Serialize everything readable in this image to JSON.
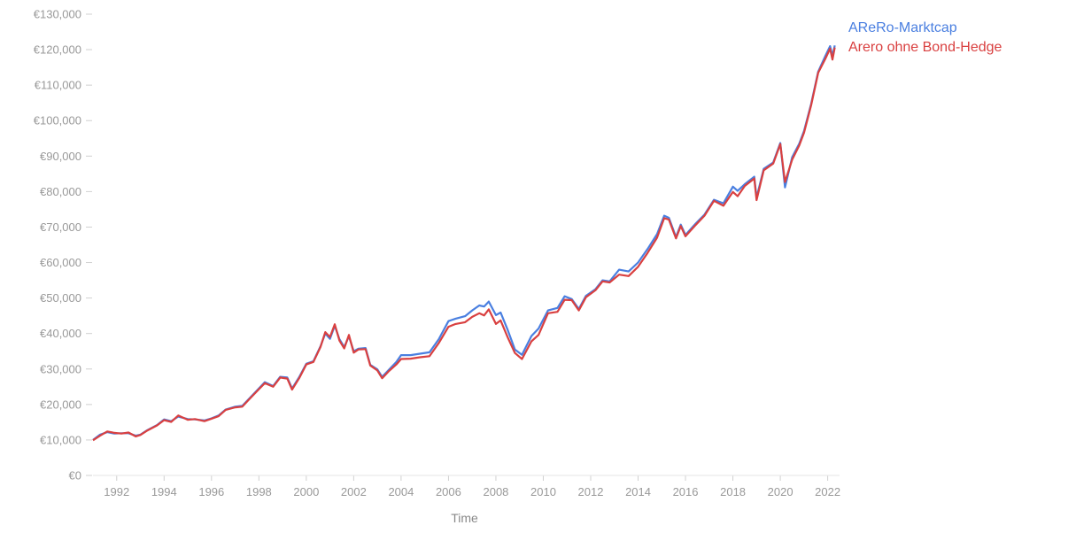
{
  "chart_data": {
    "type": "line",
    "xlabel": "Time",
    "ylabel": "",
    "xlim": [
      1991.0,
      2022.5
    ],
    "ylim": [
      0,
      130000
    ],
    "grid": false,
    "legend_placement": "right, next to line ends",
    "y_ticks": [
      0,
      10000,
      20000,
      30000,
      40000,
      50000,
      60000,
      70000,
      80000,
      90000,
      100000,
      110000,
      120000,
      130000
    ],
    "y_tick_labels": [
      "€0",
      "€10,000",
      "€20,000",
      "€30,000",
      "€40,000",
      "€50,000",
      "€60,000",
      "€70,000",
      "€80,000",
      "€90,000",
      "€100,000",
      "€110,000",
      "€120,000",
      "€130,000"
    ],
    "x_ticks": [
      1992,
      1994,
      1996,
      1998,
      2000,
      2002,
      2004,
      2006,
      2008,
      2010,
      2012,
      2014,
      2016,
      2018,
      2020,
      2022
    ],
    "x_tick_labels": [
      "1992",
      "1994",
      "1996",
      "1998",
      "2000",
      "2002",
      "2004",
      "2006",
      "2008",
      "2010",
      "2012",
      "2014",
      "2016",
      "2018",
      "2020",
      "2022"
    ],
    "series": [
      {
        "name": "AReRo-Marktcap",
        "color": "#4a7fe0",
        "points": [
          [
            1991.0,
            10000
          ],
          [
            1991.3,
            11500
          ],
          [
            1991.6,
            12200
          ],
          [
            1991.9,
            11800
          ],
          [
            1992.2,
            11900
          ],
          [
            1992.5,
            11900
          ],
          [
            1992.8,
            11200
          ],
          [
            1993.0,
            11500
          ],
          [
            1993.3,
            12800
          ],
          [
            1993.7,
            14200
          ],
          [
            1994.0,
            15800
          ],
          [
            1994.3,
            15300
          ],
          [
            1994.6,
            16600
          ],
          [
            1995.0,
            15900
          ],
          [
            1995.3,
            15800
          ],
          [
            1995.7,
            15500
          ],
          [
            1996.0,
            16100
          ],
          [
            1996.3,
            16900
          ],
          [
            1996.6,
            18600
          ],
          [
            1997.0,
            19400
          ],
          [
            1997.3,
            19600
          ],
          [
            1997.6,
            21700
          ],
          [
            1998.0,
            24500
          ],
          [
            1998.25,
            26300
          ],
          [
            1998.6,
            25200
          ],
          [
            1998.9,
            27800
          ],
          [
            1999.2,
            27600
          ],
          [
            1999.4,
            24500
          ],
          [
            1999.7,
            27700
          ],
          [
            2000.0,
            31500
          ],
          [
            2000.3,
            32200
          ],
          [
            2000.6,
            36400
          ],
          [
            2000.8,
            40000
          ],
          [
            2001.0,
            38500
          ],
          [
            2001.2,
            42200
          ],
          [
            2001.4,
            38400
          ],
          [
            2001.6,
            36200
          ],
          [
            2001.8,
            39200
          ],
          [
            2002.0,
            35000
          ],
          [
            2002.2,
            35700
          ],
          [
            2002.5,
            35900
          ],
          [
            2002.7,
            31200
          ],
          [
            2003.0,
            29900
          ],
          [
            2003.2,
            27800
          ],
          [
            2003.5,
            29900
          ],
          [
            2003.8,
            32000
          ],
          [
            2004.0,
            33900
          ],
          [
            2004.4,
            33900
          ],
          [
            2004.8,
            34300
          ],
          [
            2005.2,
            34700
          ],
          [
            2005.6,
            38500
          ],
          [
            2006.0,
            43500
          ],
          [
            2006.3,
            44200
          ],
          [
            2006.7,
            44900
          ],
          [
            2007.0,
            46500
          ],
          [
            2007.3,
            47900
          ],
          [
            2007.5,
            47600
          ],
          [
            2007.7,
            49000
          ],
          [
            2008.0,
            45200
          ],
          [
            2008.2,
            45900
          ],
          [
            2008.5,
            41000
          ],
          [
            2008.8,
            35500
          ],
          [
            2009.1,
            34000
          ],
          [
            2009.5,
            39300
          ],
          [
            2009.8,
            41400
          ],
          [
            2010.2,
            46500
          ],
          [
            2010.6,
            47200
          ],
          [
            2010.9,
            50500
          ],
          [
            2011.2,
            49700
          ],
          [
            2011.5,
            46900
          ],
          [
            2011.8,
            50600
          ],
          [
            2012.2,
            52500
          ],
          [
            2012.5,
            55000
          ],
          [
            2012.8,
            54700
          ],
          [
            2013.2,
            58000
          ],
          [
            2013.6,
            57500
          ],
          [
            2014.0,
            60000
          ],
          [
            2014.4,
            63800
          ],
          [
            2014.8,
            68000
          ],
          [
            2015.1,
            73200
          ],
          [
            2015.3,
            72600
          ],
          [
            2015.6,
            67200
          ],
          [
            2015.8,
            70700
          ],
          [
            2016.0,
            67800
          ],
          [
            2016.4,
            70800
          ],
          [
            2016.8,
            73500
          ],
          [
            2017.2,
            77700
          ],
          [
            2017.6,
            76700
          ],
          [
            2018.0,
            81400
          ],
          [
            2018.2,
            80200
          ],
          [
            2018.5,
            82100
          ],
          [
            2018.9,
            84200
          ],
          [
            2019.0,
            78300
          ],
          [
            2019.3,
            86400
          ],
          [
            2019.7,
            88200
          ],
          [
            2020.0,
            93700
          ],
          [
            2020.2,
            81200
          ],
          [
            2020.5,
            89700
          ],
          [
            2020.8,
            93500
          ],
          [
            2021.0,
            97100
          ],
          [
            2021.3,
            104700
          ],
          [
            2021.6,
            113800
          ],
          [
            2021.9,
            118200
          ],
          [
            2022.1,
            121000
          ],
          [
            2022.2,
            118200
          ],
          [
            2022.3,
            121200
          ]
        ]
      },
      {
        "name": "Arero ohne Bond-Hedge",
        "color": "#d94040",
        "points": [
          [
            1991.0,
            9900
          ],
          [
            1991.3,
            11200
          ],
          [
            1991.6,
            12400
          ],
          [
            1991.9,
            12000
          ],
          [
            1992.2,
            11800
          ],
          [
            1992.5,
            12100
          ],
          [
            1992.8,
            11000
          ],
          [
            1993.0,
            11400
          ],
          [
            1993.3,
            12700
          ],
          [
            1993.7,
            14100
          ],
          [
            1994.0,
            15600
          ],
          [
            1994.3,
            15100
          ],
          [
            1994.6,
            16900
          ],
          [
            1995.0,
            15700
          ],
          [
            1995.3,
            15900
          ],
          [
            1995.7,
            15300
          ],
          [
            1996.0,
            16000
          ],
          [
            1996.3,
            16700
          ],
          [
            1996.6,
            18500
          ],
          [
            1997.0,
            19200
          ],
          [
            1997.3,
            19400
          ],
          [
            1997.6,
            21500
          ],
          [
            1998.0,
            24300
          ],
          [
            1998.25,
            26000
          ],
          [
            1998.6,
            25000
          ],
          [
            1998.9,
            27600
          ],
          [
            1999.2,
            27300
          ],
          [
            1999.4,
            24200
          ],
          [
            1999.7,
            27400
          ],
          [
            2000.0,
            31300
          ],
          [
            2000.3,
            32000
          ],
          [
            2000.6,
            36200
          ],
          [
            2000.8,
            40400
          ],
          [
            2001.0,
            39000
          ],
          [
            2001.2,
            42600
          ],
          [
            2001.4,
            38000
          ],
          [
            2001.6,
            35800
          ],
          [
            2001.8,
            39600
          ],
          [
            2002.0,
            34600
          ],
          [
            2002.2,
            35500
          ],
          [
            2002.5,
            35600
          ],
          [
            2002.7,
            31000
          ],
          [
            2003.0,
            29600
          ],
          [
            2003.2,
            27400
          ],
          [
            2003.5,
            29500
          ],
          [
            2003.8,
            31300
          ],
          [
            2004.0,
            32800
          ],
          [
            2004.4,
            32900
          ],
          [
            2004.8,
            33300
          ],
          [
            2005.2,
            33600
          ],
          [
            2005.6,
            37400
          ],
          [
            2006.0,
            41900
          ],
          [
            2006.3,
            42700
          ],
          [
            2006.7,
            43200
          ],
          [
            2007.0,
            44700
          ],
          [
            2007.3,
            45700
          ],
          [
            2007.5,
            45100
          ],
          [
            2007.7,
            46800
          ],
          [
            2008.0,
            42700
          ],
          [
            2008.2,
            43700
          ],
          [
            2008.5,
            38900
          ],
          [
            2008.8,
            34500
          ],
          [
            2009.1,
            32800
          ],
          [
            2009.5,
            37800
          ],
          [
            2009.8,
            39600
          ],
          [
            2010.2,
            45700
          ],
          [
            2010.6,
            46100
          ],
          [
            2010.9,
            49500
          ],
          [
            2011.2,
            49400
          ],
          [
            2011.5,
            46500
          ],
          [
            2011.8,
            50200
          ],
          [
            2012.2,
            52200
          ],
          [
            2012.5,
            54700
          ],
          [
            2012.8,
            54400
          ],
          [
            2013.2,
            56600
          ],
          [
            2013.6,
            56200
          ],
          [
            2014.0,
            58800
          ],
          [
            2014.4,
            62700
          ],
          [
            2014.8,
            67000
          ],
          [
            2015.1,
            72500
          ],
          [
            2015.3,
            72100
          ],
          [
            2015.6,
            66800
          ],
          [
            2015.8,
            70300
          ],
          [
            2016.0,
            67400
          ],
          [
            2016.4,
            70400
          ],
          [
            2016.8,
            73200
          ],
          [
            2017.2,
            77400
          ],
          [
            2017.6,
            76000
          ],
          [
            2018.0,
            79900
          ],
          [
            2018.2,
            78700
          ],
          [
            2018.5,
            81600
          ],
          [
            2018.9,
            83700
          ],
          [
            2019.0,
            77600
          ],
          [
            2019.3,
            86000
          ],
          [
            2019.7,
            87900
          ],
          [
            2020.0,
            93400
          ],
          [
            2020.2,
            82700
          ],
          [
            2020.5,
            89000
          ],
          [
            2020.8,
            93000
          ],
          [
            2021.0,
            96600
          ],
          [
            2021.3,
            104300
          ],
          [
            2021.6,
            113500
          ],
          [
            2021.9,
            117400
          ],
          [
            2022.1,
            120300
          ],
          [
            2022.2,
            117200
          ],
          [
            2022.3,
            120600
          ]
        ]
      }
    ]
  }
}
